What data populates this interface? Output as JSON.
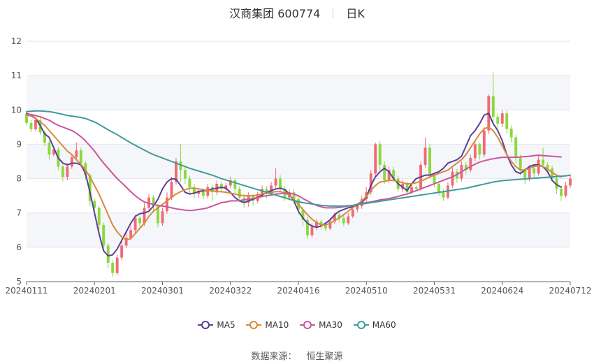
{
  "title": {
    "stock": "汉商集团 600774",
    "period": "日K"
  },
  "legend": [
    {
      "name": "MA5",
      "color": "#5b3f97"
    },
    {
      "name": "MA10",
      "color": "#d9893d"
    },
    {
      "name": "MA30",
      "color": "#c9569d"
    },
    {
      "name": "MA60",
      "color": "#3f9b9b"
    }
  ],
  "source": {
    "label": "数据来源：",
    "value": "恒生聚源"
  },
  "colors": {
    "up": "#ee6b76",
    "down": "#8ad93c"
  },
  "chart_data": {
    "type": "candlestick",
    "ylim": [
      5,
      12
    ],
    "yticks": [
      5,
      6,
      7,
      8,
      9,
      10,
      11,
      12
    ],
    "xticks": [
      "20240111",
      "20240201",
      "20240301",
      "20240322",
      "20240416",
      "20240510",
      "20240531",
      "20240624",
      "20240712"
    ],
    "n_days": 121,
    "xtick_index": [
      0,
      15,
      30,
      45,
      60,
      75,
      90,
      105,
      120
    ],
    "candles": [
      [
        9.88,
        9.62,
        9.92,
        9.55
      ],
      [
        9.62,
        9.44,
        9.7,
        9.35
      ],
      [
        9.44,
        9.7,
        9.82,
        9.38
      ],
      [
        9.7,
        9.35,
        9.78,
        9.28
      ],
      [
        9.35,
        9.05,
        9.4,
        8.95
      ],
      [
        9.05,
        8.7,
        9.12,
        8.55
      ],
      [
        8.7,
        8.85,
        8.95,
        8.65
      ],
      [
        8.85,
        8.35,
        8.92,
        8.25
      ],
      [
        8.35,
        8.05,
        8.4,
        7.92
      ],
      [
        8.05,
        8.35,
        8.45,
        7.95
      ],
      [
        8.35,
        8.62,
        8.72,
        8.28
      ],
      [
        8.62,
        8.82,
        9.05,
        8.55
      ],
      [
        8.82,
        8.45,
        8.9,
        8.35
      ],
      [
        8.45,
        8.1,
        8.52,
        7.95
      ],
      [
        8.1,
        7.35,
        8.15,
        7.2
      ],
      [
        7.35,
        7.15,
        7.42,
        6.9
      ],
      [
        7.15,
        6.65,
        7.2,
        6.5
      ],
      [
        6.65,
        6.05,
        6.72,
        5.9
      ],
      [
        6.05,
        5.55,
        6.12,
        5.4
      ],
      [
        5.55,
        5.25,
        5.62,
        5.15
      ],
      [
        5.25,
        5.7,
        5.78,
        5.18
      ],
      [
        5.7,
        6.05,
        6.2,
        5.62
      ],
      [
        6.05,
        6.28,
        6.4,
        5.98
      ],
      [
        6.28,
        6.5,
        6.62,
        6.22
      ],
      [
        6.5,
        6.85,
        6.95,
        6.42
      ],
      [
        6.85,
        6.7,
        6.92,
        6.55
      ],
      [
        6.7,
        7.15,
        7.28,
        6.62
      ],
      [
        7.15,
        7.45,
        7.55,
        7.05
      ],
      [
        7.45,
        7.2,
        7.52,
        7.02
      ],
      [
        7.2,
        6.7,
        7.25,
        6.58
      ],
      [
        6.7,
        7.05,
        7.15,
        6.62
      ],
      [
        7.05,
        7.45,
        7.6,
        6.98
      ],
      [
        7.45,
        7.9,
        8.05,
        7.38
      ],
      [
        7.9,
        8.5,
        8.6,
        7.82
      ],
      [
        8.5,
        8.25,
        9.0,
        7.9
      ],
      [
        8.25,
        8.0,
        8.35,
        7.85
      ],
      [
        8.0,
        7.75,
        8.08,
        7.55
      ],
      [
        7.75,
        7.55,
        7.85,
        7.42
      ],
      [
        7.55,
        7.65,
        7.72,
        7.45
      ],
      [
        7.65,
        7.5,
        7.72,
        7.4
      ],
      [
        7.5,
        7.75,
        7.85,
        7.42
      ],
      [
        7.75,
        7.6,
        7.82,
        7.35
      ],
      [
        7.6,
        7.85,
        7.95,
        7.52
      ],
      [
        7.85,
        7.7,
        7.92,
        7.6
      ],
      [
        7.7,
        7.8,
        7.88,
        7.62
      ],
      [
        7.8,
        7.95,
        8.05,
        7.72
      ],
      [
        7.95,
        7.7,
        8.0,
        7.55
      ],
      [
        7.7,
        7.45,
        7.78,
        7.32
      ],
      [
        7.45,
        7.3,
        7.55,
        7.15
      ],
      [
        7.3,
        7.5,
        7.6,
        7.18
      ],
      [
        7.5,
        7.35,
        7.55,
        7.22
      ],
      [
        7.35,
        7.55,
        7.62,
        7.28
      ],
      [
        7.55,
        7.7,
        7.8,
        7.45
      ],
      [
        7.7,
        7.55,
        7.78,
        7.42
      ],
      [
        7.55,
        7.8,
        7.9,
        7.5
      ],
      [
        7.8,
        8.0,
        8.3,
        7.72
      ],
      [
        8.0,
        7.7,
        8.1,
        7.6
      ],
      [
        7.7,
        7.45,
        7.78,
        7.35
      ],
      [
        7.45,
        7.6,
        7.68,
        7.38
      ],
      [
        7.6,
        7.4,
        7.7,
        7.3
      ],
      [
        7.4,
        7.1,
        7.48,
        6.95
      ],
      [
        7.1,
        6.8,
        7.18,
        6.62
      ],
      [
        6.8,
        6.35,
        6.88,
        6.25
      ],
      [
        6.35,
        6.6,
        6.7,
        6.28
      ],
      [
        6.6,
        6.75,
        6.82,
        6.5
      ],
      [
        6.75,
        6.65,
        6.8,
        6.52
      ],
      [
        6.65,
        6.55,
        6.72,
        6.48
      ],
      [
        6.55,
        6.75,
        6.85,
        6.5
      ],
      [
        6.75,
        6.95,
        7.02,
        6.68
      ],
      [
        6.95,
        6.85,
        7.0,
        6.72
      ],
      [
        6.85,
        6.7,
        6.92,
        6.62
      ],
      [
        6.7,
        6.9,
        7.0,
        6.65
      ],
      [
        6.9,
        7.1,
        7.2,
        6.85
      ],
      [
        7.1,
        7.2,
        7.28,
        7.02
      ],
      [
        7.2,
        7.4,
        7.5,
        7.12
      ],
      [
        7.4,
        7.6,
        7.75,
        7.32
      ],
      [
        7.6,
        8.15,
        8.25,
        7.52
      ],
      [
        8.15,
        9.0,
        9.05,
        8.05
      ],
      [
        9.0,
        8.4,
        9.1,
        8.25
      ],
      [
        8.4,
        7.95,
        8.5,
        7.85
      ],
      [
        7.95,
        8.25,
        8.35,
        7.88
      ],
      [
        8.25,
        8.0,
        8.35,
        7.9
      ],
      [
        8.0,
        7.7,
        8.08,
        7.62
      ],
      [
        7.7,
        7.85,
        7.95,
        7.6
      ],
      [
        7.85,
        7.6,
        7.92,
        7.55
      ],
      [
        7.6,
        7.75,
        7.82,
        7.55
      ],
      [
        7.75,
        7.7,
        7.8,
        7.62
      ],
      [
        7.7,
        8.4,
        8.5,
        7.65
      ],
      [
        8.4,
        8.9,
        9.2,
        8.32
      ],
      [
        8.9,
        8.1,
        9.0,
        8.0
      ],
      [
        8.1,
        7.85,
        8.18,
        7.75
      ],
      [
        7.85,
        7.6,
        7.92,
        7.5
      ],
      [
        7.6,
        7.45,
        7.7,
        7.35
      ],
      [
        7.45,
        7.8,
        7.9,
        7.4
      ],
      [
        7.8,
        8.2,
        8.32,
        7.72
      ],
      [
        8.2,
        8.0,
        8.28,
        7.88
      ],
      [
        8.0,
        8.4,
        8.5,
        7.92
      ],
      [
        8.4,
        8.25,
        8.48,
        8.12
      ],
      [
        8.25,
        8.6,
        8.7,
        8.18
      ],
      [
        8.6,
        9.0,
        9.1,
        8.5
      ],
      [
        9.0,
        8.7,
        9.05,
        8.55
      ],
      [
        8.7,
        9.4,
        9.5,
        8.62
      ],
      [
        9.4,
        10.4,
        10.45,
        9.3
      ],
      [
        10.4,
        9.8,
        11.1,
        9.6
      ],
      [
        9.8,
        9.6,
        9.9,
        9.45
      ],
      [
        9.6,
        9.9,
        10.0,
        9.5
      ],
      [
        9.9,
        9.45,
        9.98,
        9.32
      ],
      [
        9.45,
        9.2,
        9.55,
        9.05
      ],
      [
        9.2,
        8.6,
        9.28,
        8.45
      ],
      [
        8.6,
        8.25,
        8.7,
        8.1
      ],
      [
        8.25,
        8.0,
        8.32,
        7.85
      ],
      [
        8.0,
        8.3,
        8.4,
        7.92
      ],
      [
        8.3,
        8.15,
        8.38,
        8.0
      ],
      [
        8.15,
        8.55,
        8.7,
        8.08
      ],
      [
        8.55,
        8.4,
        8.9,
        8.3
      ],
      [
        8.4,
        8.3,
        8.48,
        8.15
      ],
      [
        8.3,
        8.0,
        8.38,
        7.9
      ],
      [
        8.0,
        7.7,
        8.1,
        7.55
      ],
      [
        7.7,
        7.5,
        7.8,
        7.35
      ],
      [
        7.5,
        7.8,
        7.9,
        7.45
      ],
      [
        7.8,
        8.0,
        8.1,
        7.72
      ]
    ],
    "series": [
      {
        "name": "MA5",
        "values": [
          9.9,
          9.85,
          9.75,
          9.55,
          9.3,
          9.2,
          8.9,
          8.6,
          8.45,
          8.4,
          8.45,
          8.45,
          8.4,
          8.15,
          7.6,
          7.0,
          6.4,
          5.9,
          5.75,
          5.78,
          5.95,
          6.2,
          6.45,
          6.7,
          6.9,
          6.98,
          7.0,
          7.05,
          7.2,
          7.4,
          7.7,
          7.9,
          8.0,
          7.98,
          7.8,
          7.6,
          7.55,
          7.58,
          7.62,
          7.65,
          7.65,
          7.7,
          7.72,
          7.75,
          7.72,
          7.6,
          7.45,
          7.35,
          7.3,
          7.35,
          7.4,
          7.45,
          7.52,
          7.6,
          7.65,
          7.7,
          7.72,
          7.68,
          7.55,
          7.35,
          7.05,
          6.85,
          6.7,
          6.62,
          6.58,
          6.62,
          6.7,
          6.8,
          6.95,
          7.05,
          7.1,
          7.15,
          7.18,
          7.22,
          7.3,
          7.45,
          7.8,
          8.05,
          8.2,
          8.3,
          8.2,
          8.0,
          7.85,
          7.75,
          7.65,
          7.85,
          8.0,
          8.05,
          8.1,
          8.1,
          8.15,
          8.2,
          8.3,
          8.45,
          8.5,
          8.55,
          8.65,
          8.95,
          9.25,
          9.4,
          9.6,
          9.85,
          9.9,
          9.6,
          9.4,
          9.1,
          8.7,
          8.4,
          8.2,
          8.15,
          8.25,
          8.35,
          8.4,
          8.4,
          8.35,
          8.2,
          7.95,
          7.82,
          7.75
        ],
        "color": "#5b3f97"
      },
      {
        "name": "MA10",
        "values": [
          9.85,
          9.82,
          9.75,
          9.65,
          9.55,
          9.4,
          9.25,
          9.1,
          8.95,
          8.8,
          8.7,
          8.55,
          8.42,
          8.25,
          8.05,
          7.8,
          7.55,
          7.25,
          6.95,
          6.65,
          6.45,
          6.3,
          6.22,
          6.25,
          6.4,
          6.55,
          6.7,
          6.9,
          7.05,
          7.15,
          7.25,
          7.35,
          7.45,
          7.55,
          7.62,
          7.68,
          7.72,
          7.72,
          7.7,
          7.68,
          7.65,
          7.65,
          7.62,
          7.62,
          7.6,
          7.58,
          7.55,
          7.52,
          7.5,
          7.5,
          7.5,
          7.52,
          7.55,
          7.58,
          7.6,
          7.62,
          7.62,
          7.58,
          7.52,
          7.4,
          7.25,
          7.1,
          6.95,
          6.82,
          6.72,
          6.65,
          6.65,
          6.7,
          6.78,
          6.85,
          6.95,
          7.05,
          7.15,
          7.25,
          7.35,
          7.48,
          7.65,
          7.8,
          7.9,
          7.92,
          7.95,
          7.95,
          7.92,
          7.88,
          7.85,
          7.85,
          7.88,
          7.92,
          7.98,
          8.05,
          8.1,
          8.15,
          8.2,
          8.25,
          8.35,
          8.45,
          8.55,
          8.7,
          8.9,
          9.1,
          9.3,
          9.45,
          9.5,
          9.4,
          9.2,
          8.95,
          8.7,
          8.5,
          8.35,
          8.25,
          8.25,
          8.3,
          8.35,
          8.38,
          8.35,
          8.28,
          8.18,
          8.1,
          8.05
        ],
        "color": "#d9893d"
      },
      {
        "name": "MA30",
        "values": [
          9.88,
          9.86,
          9.84,
          9.8,
          9.75,
          9.7,
          9.62,
          9.55,
          9.5,
          9.45,
          9.4,
          9.32,
          9.22,
          9.1,
          8.95,
          8.8,
          8.62,
          8.45,
          8.3,
          8.15,
          8.0,
          7.88,
          7.75,
          7.62,
          7.5,
          7.4,
          7.32,
          7.28,
          7.25,
          7.22,
          7.2,
          7.18,
          7.15,
          7.12,
          7.1,
          7.08,
          7.07,
          7.08,
          7.1,
          7.12,
          7.15,
          7.2,
          7.25,
          7.3,
          7.32,
          7.35,
          7.35,
          7.36,
          7.38,
          7.4,
          7.42,
          7.45,
          7.48,
          7.5,
          7.52,
          7.55,
          7.56,
          7.58,
          7.58,
          7.55,
          7.5,
          7.42,
          7.35,
          7.28,
          7.22,
          7.18,
          7.15,
          7.15,
          7.15,
          7.16,
          7.18,
          7.2,
          7.22,
          7.25,
          7.28,
          7.3,
          7.32,
          7.35,
          7.38,
          7.4,
          7.42,
          7.45,
          7.48,
          7.52,
          7.55,
          7.6,
          7.65,
          7.7,
          7.75,
          7.8,
          7.85,
          7.9,
          7.95,
          8.0,
          8.05,
          8.12,
          8.2,
          8.28,
          8.35,
          8.42,
          8.48,
          8.52,
          8.55,
          8.58,
          8.6,
          8.62,
          8.62,
          8.62,
          8.62,
          8.63,
          8.64,
          8.65,
          8.67,
          8.68,
          8.67,
          8.66,
          8.65,
          8.64,
          8.63
        ],
        "color": "#c9569d"
      },
      {
        "name": "MA60",
        "values": [
          9.95,
          9.96,
          9.97,
          9.97,
          9.96,
          9.95,
          9.93,
          9.9,
          9.87,
          9.84,
          9.82,
          9.8,
          9.78,
          9.75,
          9.7,
          9.65,
          9.58,
          9.5,
          9.42,
          9.35,
          9.28,
          9.2,
          9.12,
          9.04,
          8.97,
          8.9,
          8.83,
          8.76,
          8.7,
          8.65,
          8.6,
          8.55,
          8.5,
          8.45,
          8.4,
          8.35,
          8.3,
          8.26,
          8.22,
          8.18,
          8.14,
          8.1,
          8.05,
          8.0,
          7.96,
          7.92,
          7.88,
          7.84,
          7.8,
          7.76,
          7.72,
          7.68,
          7.64,
          7.6,
          7.56,
          7.52,
          7.48,
          7.44,
          7.4,
          7.36,
          7.33,
          7.3,
          7.28,
          7.26,
          7.24,
          7.22,
          7.21,
          7.2,
          7.2,
          7.2,
          7.2,
          7.21,
          7.22,
          7.24,
          7.26,
          7.28,
          7.3,
          7.32,
          7.34,
          7.36,
          7.38,
          7.4,
          7.42,
          7.44,
          7.46,
          7.48,
          7.5,
          7.52,
          7.54,
          7.56,
          7.58,
          7.6,
          7.62,
          7.64,
          7.66,
          7.68,
          7.7,
          7.72,
          7.75,
          7.78,
          7.81,
          7.84,
          7.87,
          7.9,
          7.92,
          7.94,
          7.95,
          7.96,
          7.97,
          7.98,
          7.99,
          8.0,
          8.01,
          8.02,
          8.03,
          8.04,
          8.05,
          8.06,
          8.07,
          8.08,
          8.1
        ],
        "color": "#3f9b9b"
      }
    ]
  }
}
